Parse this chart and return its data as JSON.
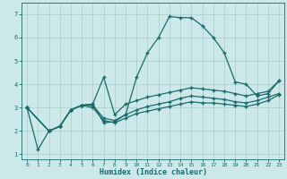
{
  "xlabel": "Humidex (Indice chaleur)",
  "ylabel": "",
  "xlim": [
    -0.5,
    23.5
  ],
  "ylim": [
    0.8,
    7.5
  ],
  "xticks": [
    0,
    1,
    2,
    3,
    4,
    5,
    6,
    7,
    8,
    9,
    10,
    11,
    12,
    13,
    14,
    15,
    16,
    17,
    18,
    19,
    20,
    21,
    22,
    23
  ],
  "yticks": [
    1,
    2,
    3,
    4,
    5,
    6,
    7
  ],
  "bg_color": "#cce8e8",
  "grid_color": "#aacccc",
  "line_color": "#1a6b6b",
  "line1_x": [
    0,
    1,
    2,
    3,
    4,
    5,
    6,
    7,
    8,
    9,
    10,
    11,
    12,
    13,
    14,
    15,
    16,
    17,
    18,
    19,
    20,
    21,
    22,
    23
  ],
  "line1_y": [
    3.0,
    1.2,
    2.0,
    2.2,
    2.9,
    3.1,
    3.15,
    2.35,
    2.4,
    2.7,
    4.3,
    5.35,
    6.0,
    6.9,
    6.85,
    6.85,
    6.5,
    6.0,
    5.35,
    4.1,
    4.0,
    3.5,
    3.6,
    4.15
  ],
  "line2_x": [
    0,
    2,
    3,
    4,
    5,
    6,
    7,
    8,
    9,
    10,
    11,
    12,
    13,
    14,
    15,
    16,
    17,
    18,
    19,
    20,
    21,
    22,
    23
  ],
  "line2_y": [
    3.0,
    2.0,
    2.2,
    2.9,
    3.1,
    3.15,
    4.3,
    2.7,
    3.15,
    3.3,
    3.45,
    3.55,
    3.65,
    3.75,
    3.85,
    3.8,
    3.75,
    3.7,
    3.6,
    3.5,
    3.6,
    3.7,
    4.15
  ],
  "line3_x": [
    0,
    2,
    3,
    4,
    5,
    6,
    7,
    8,
    9,
    10,
    11,
    12,
    13,
    14,
    15,
    16,
    17,
    18,
    19,
    20,
    21,
    22,
    23
  ],
  "line3_y": [
    3.0,
    2.0,
    2.2,
    2.9,
    3.1,
    3.1,
    2.55,
    2.45,
    2.7,
    2.9,
    3.05,
    3.15,
    3.25,
    3.4,
    3.5,
    3.45,
    3.4,
    3.35,
    3.25,
    3.2,
    3.3,
    3.45,
    3.6
  ],
  "line4_x": [
    0,
    2,
    3,
    4,
    5,
    6,
    7,
    8,
    9,
    10,
    11,
    12,
    13,
    14,
    15,
    16,
    17,
    18,
    19,
    20,
    21,
    22,
    23
  ],
  "line4_y": [
    3.0,
    2.0,
    2.2,
    2.9,
    3.1,
    3.0,
    2.45,
    2.35,
    2.55,
    2.75,
    2.85,
    2.95,
    3.05,
    3.15,
    3.25,
    3.2,
    3.2,
    3.15,
    3.1,
    3.05,
    3.15,
    3.3,
    3.55
  ]
}
